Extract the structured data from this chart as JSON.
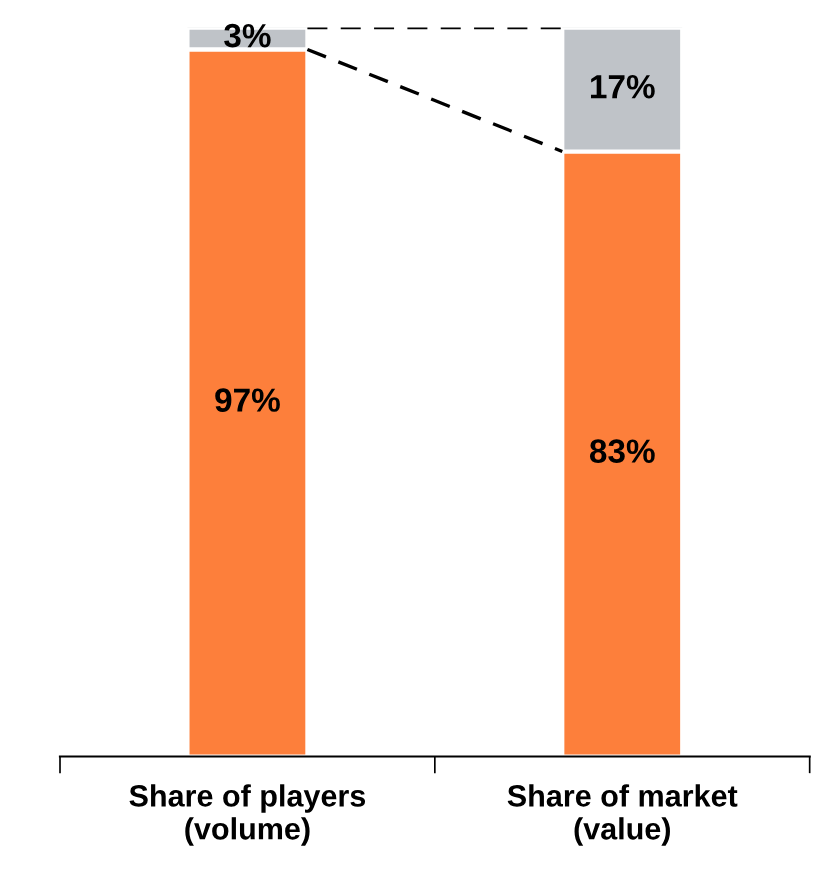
{
  "chart_data": {
    "type": "bar",
    "stacked": true,
    "legend": false,
    "grid": false,
    "categories": [
      "Share of players\n(volume)",
      "Share of market\n(value)"
    ],
    "series": [
      {
        "color": "#fd7f3b",
        "values": [
          97,
          83
        ],
        "value_labels": [
          "97%",
          "83%"
        ]
      },
      {
        "color": "#bfc3c8",
        "values": [
          3,
          17
        ],
        "value_labels": [
          "3%",
          "17%"
        ]
      }
    ]
  }
}
